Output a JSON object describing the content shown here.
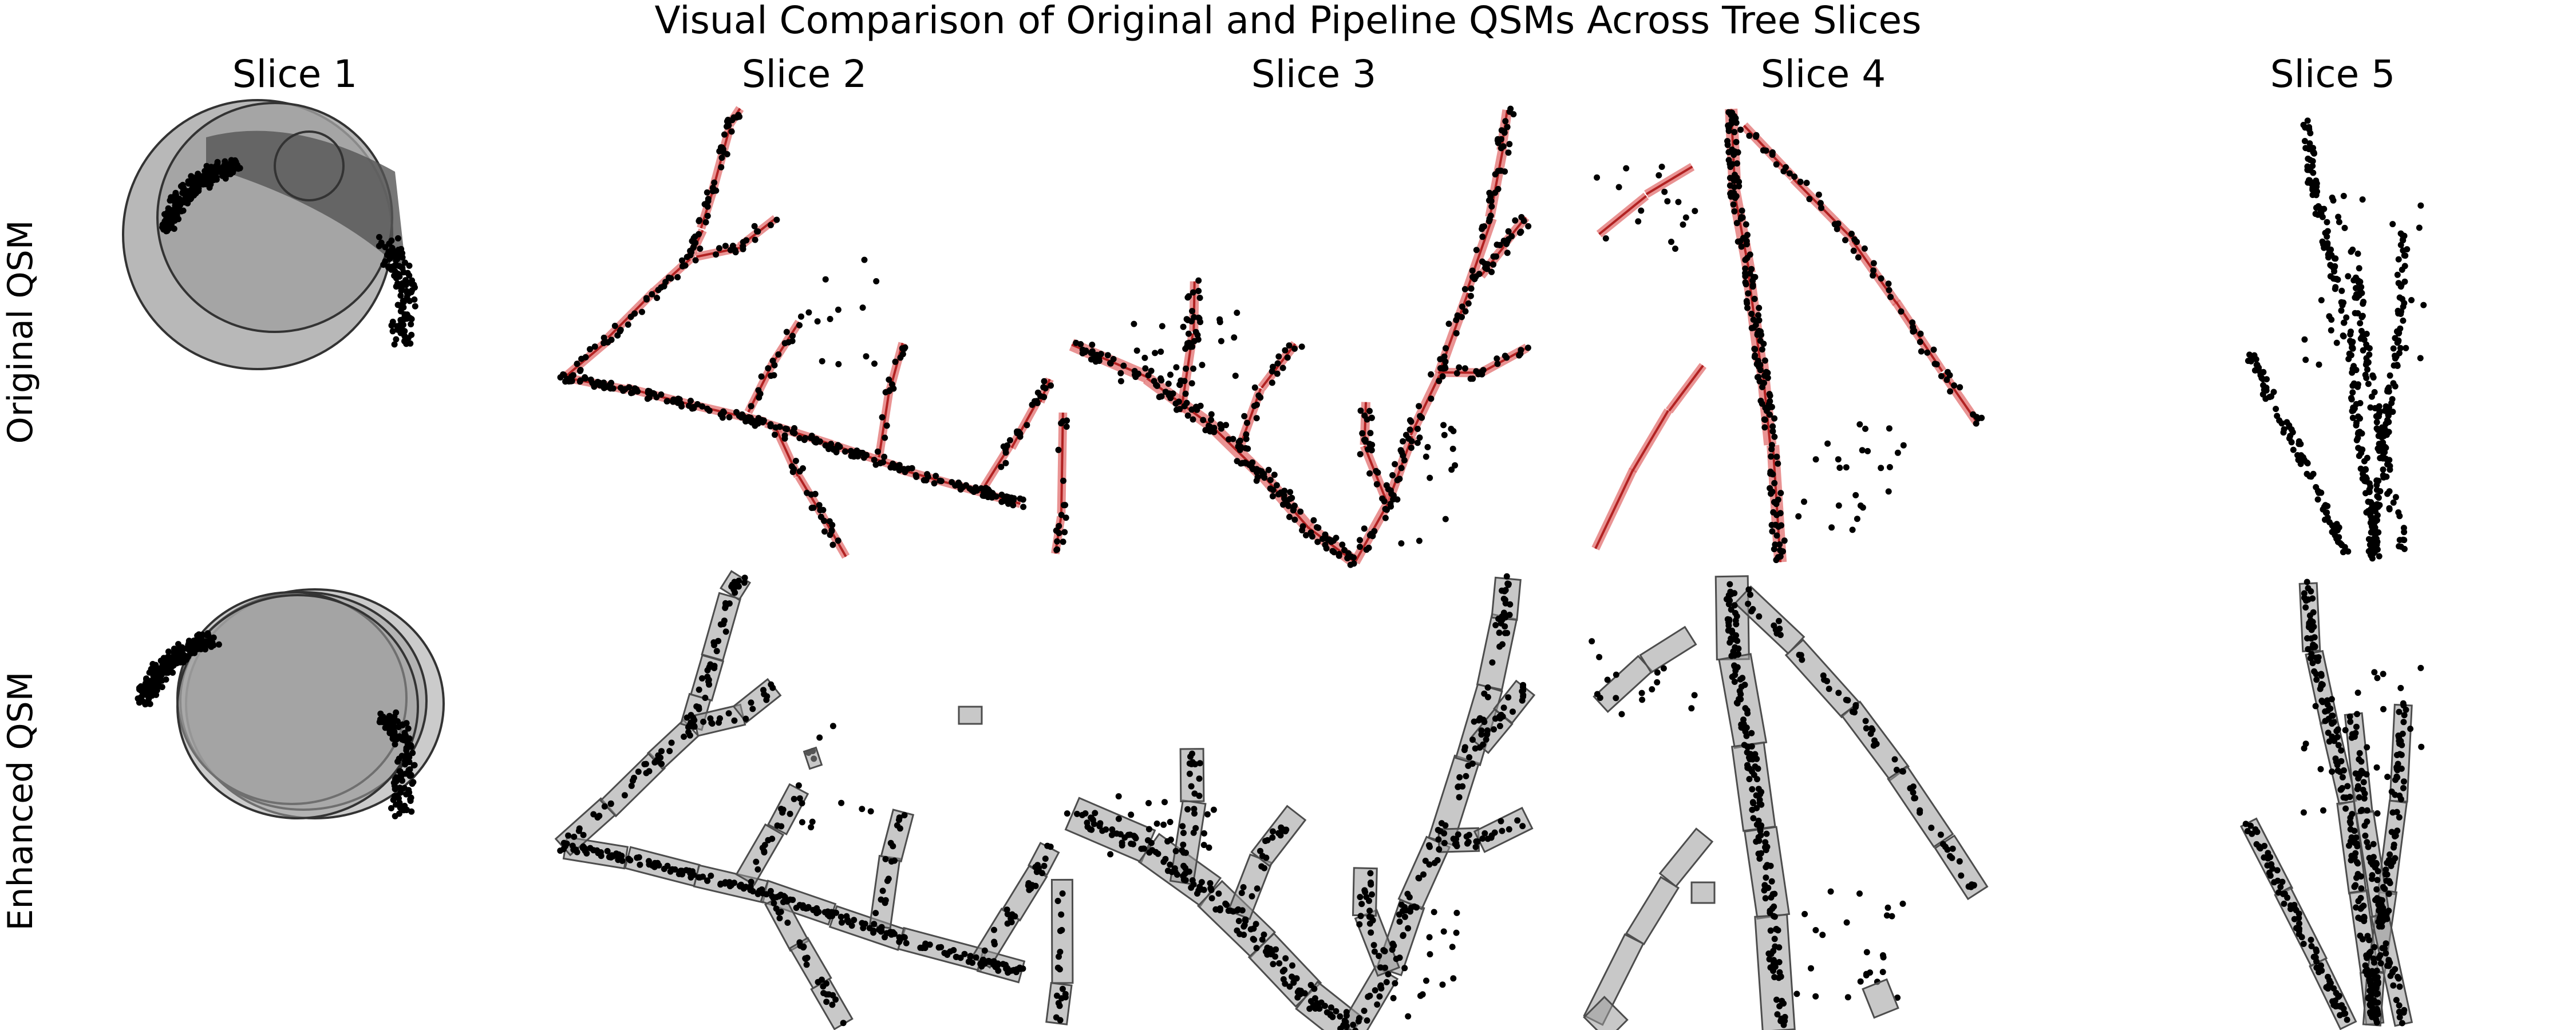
{
  "figure": {
    "title": "Visual Comparison of Original and Pipeline QSMs Across Tree Slices",
    "column_titles": [
      "Slice 1",
      "Slice 2",
      "Slice 3",
      "Slice 4",
      "Slice 5"
    ],
    "row_labels": [
      "Original QSM",
      "Enhanced QSM"
    ]
  },
  "colors": {
    "points": "#000000",
    "original_cylinder_line": "#b22222",
    "original_cylinder_fill": "#e06666",
    "enhanced_cylinder_fill": "#9a9a9a",
    "enhanced_cylinder_edge": "#4d4d4d",
    "disk_fill": "#a0a0a0",
    "disk_edge": "#333333"
  }
}
